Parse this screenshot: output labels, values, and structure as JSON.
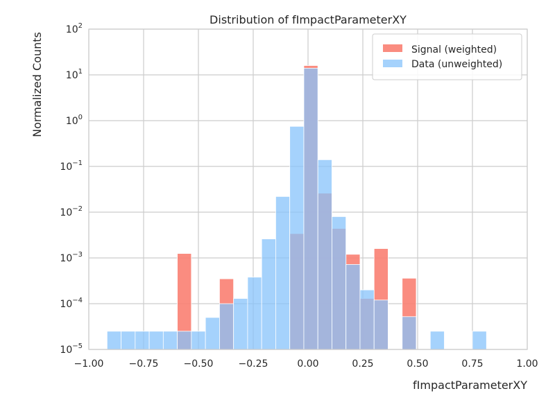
{
  "chart_data": {
    "type": "bar",
    "title": "Distribution of fImpactParameterXY",
    "xlabel": "fImpactParameterXY",
    "ylabel": "Normalized Counts",
    "xlim": [
      -1.0,
      1.0
    ],
    "ylim": [
      1e-05,
      100
    ],
    "yscale": "log",
    "grid": true,
    "legend_position": "top-right",
    "x_ticks": [
      "−1.00",
      "−0.75",
      "−0.50",
      "−0.25",
      "0.00",
      "0.25",
      "0.50",
      "0.75",
      "1.00"
    ],
    "y_ticks": [
      {
        "base": "10",
        "exp": "−5"
      },
      {
        "base": "10",
        "exp": "−4"
      },
      {
        "base": "10",
        "exp": "−3"
      },
      {
        "base": "10",
        "exp": "−2"
      },
      {
        "base": "10",
        "exp": "−1"
      },
      {
        "base": "10",
        "exp": "0"
      },
      {
        "base": "10",
        "exp": "1"
      },
      {
        "base": "10",
        "exp": "2"
      }
    ],
    "bin_edges": [
      -0.9167,
      -0.8526,
      -0.7885,
      -0.7244,
      -0.6603,
      -0.5962,
      -0.5321,
      -0.4679,
      -0.4038,
      -0.3397,
      -0.2756,
      -0.2115,
      -0.1474,
      -0.0833,
      -0.0192,
      0.0449,
      0.109,
      0.1731,
      0.2372,
      0.3013,
      0.3654,
      0.4295,
      0.4936,
      0.5577,
      0.6218,
      0.6859,
      0.75,
      0.8141,
      0.8782,
      0.9423
    ],
    "series": [
      {
        "name": "Signal (weighted)",
        "color": "#fa8072",
        "values": [
          null,
          null,
          null,
          null,
          null,
          0.00125,
          null,
          null,
          0.00035,
          null,
          null,
          null,
          null,
          0.0034,
          16.0,
          0.026,
          0.0044,
          0.0012,
          0.00013,
          0.0016,
          null,
          0.00036,
          null,
          null,
          null,
          null,
          null,
          null,
          null
        ]
      },
      {
        "name": "Data (unweighted)",
        "color": "#87c3fb",
        "values": [
          2.5e-05,
          2.5e-05,
          2.5e-05,
          2.5e-05,
          2.5e-05,
          2.5e-05,
          2.5e-05,
          5e-05,
          0.0001,
          0.00013,
          0.00038,
          0.0026,
          0.022,
          0.75,
          14.0,
          0.14,
          0.008,
          0.00072,
          0.0002,
          0.00012,
          null,
          5.2e-05,
          null,
          2.5e-05,
          null,
          null,
          2.5e-05,
          null,
          null
        ]
      }
    ]
  }
}
